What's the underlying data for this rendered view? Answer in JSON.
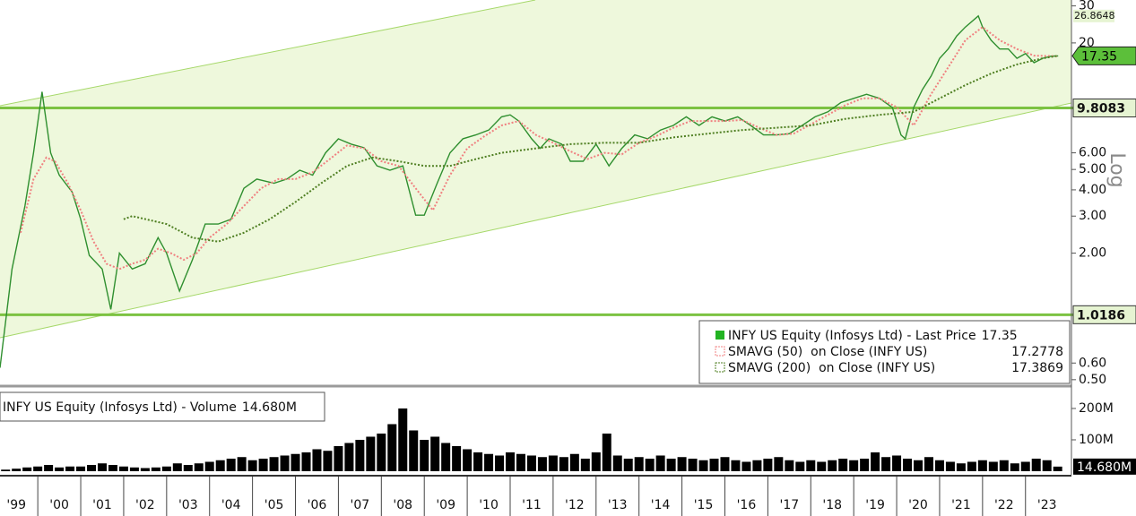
{
  "chart_data": [
    {
      "type": "line",
      "log_scale": true,
      "scale_label": "Log",
      "xlim": [
        1999.12,
        2024.07
      ],
      "ylim": [
        0.48,
        32
      ],
      "yticks": [
        30,
        20,
        {
          "value": 6,
          "label": "6.00"
        },
        {
          "value": 5,
          "label": "5.00"
        },
        {
          "value": 4,
          "label": "4.00"
        },
        {
          "value": 3,
          "label": "3.00"
        },
        {
          "value": 2,
          "label": "2.00"
        },
        {
          "value": 0.6,
          "label": "0.60"
        },
        {
          "value": 0.5,
          "label": "0.50"
        }
      ],
      "levels": [
        9.8083,
        1.0186
      ],
      "level_color": "#7cc242",
      "legend": "bottom-right",
      "series": [
        {
          "name": "INFY US Equity (Infosys Ltd) - Last Price",
          "color": "#2f8f2f",
          "x": [
            1999.12,
            1999.4,
            1999.7,
            1999.9,
            2000.1,
            2000.3,
            2000.5,
            2000.8,
            2001.0,
            2001.2,
            2001.5,
            2001.7,
            2001.9,
            2002.2,
            2002.5,
            2002.8,
            2003.0,
            2003.3,
            2003.6,
            2003.9,
            2004.2,
            2004.5,
            2004.8,
            2005.1,
            2005.5,
            2005.8,
            2006.1,
            2006.4,
            2006.7,
            2007.0,
            2007.3,
            2007.6,
            2007.9,
            2008.2,
            2008.5,
            2008.8,
            2009.0,
            2009.3,
            2009.6,
            2009.9,
            2010.2,
            2010.5,
            2010.8,
            2011.0,
            2011.2,
            2011.5,
            2011.7,
            2011.9,
            2012.2,
            2012.4,
            2012.7,
            2013.0,
            2013.3,
            2013.6,
            2013.9,
            2014.2,
            2014.5,
            2014.8,
            2015.1,
            2015.4,
            2015.7,
            2016.0,
            2016.3,
            2016.6,
            2016.9,
            2017.2,
            2017.5,
            2017.8,
            2018.1,
            2018.4,
            2018.7,
            2019.0,
            2019.3,
            2019.6,
            2019.9,
            2020.1,
            2020.2,
            2020.4,
            2020.6,
            2020.8,
            2021.0,
            2021.2,
            2021.4,
            2021.6,
            2021.9,
            2022.0,
            2022.2,
            2022.4,
            2022.6,
            2022.8,
            2023.0,
            2023.2,
            2023.4,
            2023.6,
            2023.76
          ],
          "values": [
            0.57,
            1.68,
            3.35,
            6.0,
            11.7,
            6.0,
            4.7,
            3.9,
            2.9,
            1.95,
            1.68,
            1.08,
            2.0,
            1.68,
            1.78,
            2.37,
            2.0,
            1.32,
            1.86,
            2.75,
            2.75,
            2.9,
            4.07,
            4.5,
            4.3,
            4.5,
            4.96,
            4.7,
            6.0,
            6.99,
            6.6,
            6.34,
            5.2,
            4.96,
            5.2,
            3.03,
            3.03,
            4.3,
            6.0,
            7.0,
            7.3,
            7.7,
            8.9,
            9.1,
            8.5,
            7.0,
            6.3,
            7.0,
            6.6,
            5.47,
            5.47,
            6.6,
            5.2,
            6.3,
            7.3,
            7.0,
            7.7,
            8.1,
            8.9,
            8.1,
            8.9,
            8.5,
            8.9,
            8.1,
            7.3,
            7.3,
            7.4,
            8.1,
            8.9,
            9.4,
            10.4,
            10.9,
            11.4,
            10.9,
            9.86,
            7.3,
            7.0,
            9.9,
            12.0,
            13.9,
            16.9,
            18.7,
            21.6,
            23.8,
            26.8648,
            23.8,
            20.6,
            18.7,
            18.7,
            16.9,
            17.8,
            16.1,
            16.9,
            17.3,
            17.35
          ]
        },
        {
          "name": "SMAVG (50)  on Close (INFY US)",
          "color": "#f08080",
          "x": [
            1999.6,
            1999.9,
            2000.2,
            2000.4,
            2000.7,
            2001.0,
            2001.3,
            2001.6,
            2001.9,
            2002.2,
            2002.5,
            2002.8,
            2003.1,
            2003.4,
            2003.7,
            2004.0,
            2004.4,
            2004.8,
            2005.2,
            2005.6,
            2006.0,
            2006.4,
            2006.8,
            2007.2,
            2007.6,
            2008.0,
            2008.4,
            2008.8,
            2009.2,
            2009.6,
            2010.0,
            2010.4,
            2010.8,
            2011.2,
            2011.6,
            2012.0,
            2012.4,
            2012.8,
            2013.2,
            2013.6,
            2014.0,
            2014.4,
            2014.8,
            2015.2,
            2015.6,
            2016.0,
            2016.4,
            2016.8,
            2017.2,
            2017.6,
            2018.0,
            2018.4,
            2018.8,
            2019.2,
            2019.6,
            2020.0,
            2020.4,
            2020.8,
            2021.2,
            2021.6,
            2022.0,
            2022.4,
            2022.8,
            2023.2,
            2023.76
          ],
          "values": [
            2.5,
            4.5,
            5.7,
            5.47,
            4.3,
            3.2,
            2.27,
            1.78,
            1.68,
            1.78,
            1.86,
            2.1,
            2.0,
            1.86,
            2.0,
            2.37,
            2.75,
            3.35,
            4.07,
            4.5,
            4.5,
            4.85,
            5.6,
            6.5,
            6.3,
            5.47,
            5.2,
            4.07,
            3.2,
            4.7,
            6.3,
            7.2,
            8.1,
            8.5,
            7.3,
            6.7,
            6.1,
            5.6,
            6.0,
            5.9,
            6.7,
            7.2,
            7.9,
            8.5,
            8.5,
            8.5,
            8.6,
            7.9,
            7.3,
            7.4,
            8.2,
            9.1,
            10.1,
            10.9,
            10.9,
            9.9,
            8.1,
            11.4,
            15.3,
            20.6,
            23.8,
            20.6,
            18.7,
            17.4,
            17.2778
          ]
        },
        {
          "name": "SMAVG (200)  on Close (INFY US)",
          "color": "#4f7f22",
          "x": [
            2002.0,
            2002.2,
            2003.0,
            2003.6,
            2004.2,
            2004.8,
            2005.4,
            2006.0,
            2006.6,
            2007.2,
            2007.8,
            2008.4,
            2009.0,
            2009.6,
            2010.2,
            2010.8,
            2011.6,
            2012.4,
            2013.2,
            2014.0,
            2014.8,
            2015.6,
            2016.4,
            2017.2,
            2018.0,
            2018.8,
            2019.6,
            2020.4,
            2021.0,
            2021.6,
            2022.2,
            2022.8,
            2023.4,
            2023.76
          ],
          "values": [
            2.9,
            3.0,
            2.75,
            2.37,
            2.27,
            2.5,
            2.9,
            3.5,
            4.3,
            5.2,
            5.7,
            5.47,
            5.2,
            5.2,
            5.6,
            6.0,
            6.3,
            6.6,
            6.7,
            6.7,
            7.1,
            7.4,
            7.7,
            7.9,
            8.1,
            8.7,
            9.1,
            9.4,
            10.9,
            12.6,
            14.3,
            15.8,
            16.9,
            17.3869
          ]
        }
      ]
    },
    {
      "type": "bar",
      "xlim": [
        1999.12,
        2024.07
      ],
      "ylim": [
        0,
        257
      ],
      "yticks": [
        {
          "value": 200,
          "label": "200M"
        },
        {
          "value": 100,
          "label": "100M"
        }
      ],
      "xticks": [
        {
          "value": 1999.5,
          "label": "'99"
        },
        {
          "value": 2000.5,
          "label": "'00"
        },
        {
          "value": 2001.5,
          "label": "'01"
        },
        {
          "value": 2002.5,
          "label": "'02"
        },
        {
          "value": 2003.5,
          "label": "'03"
        },
        {
          "value": 2004.5,
          "label": "'04"
        },
        {
          "value": 2005.5,
          "label": "'05"
        },
        {
          "value": 2006.5,
          "label": "'06"
        },
        {
          "value": 2007.5,
          "label": "'07"
        },
        {
          "value": 2008.5,
          "label": "'08"
        },
        {
          "value": 2009.5,
          "label": "'09"
        },
        {
          "value": 2010.5,
          "label": "'10"
        },
        {
          "value": 2011.5,
          "label": "'11"
        },
        {
          "value": 2012.5,
          "label": "'12"
        },
        {
          "value": 2013.5,
          "label": "'13"
        },
        {
          "value": 2014.5,
          "label": "'14"
        },
        {
          "value": 2015.5,
          "label": "'15"
        },
        {
          "value": 2016.5,
          "label": "'16"
        },
        {
          "value": 2017.5,
          "label": "'17"
        },
        {
          "value": 2018.5,
          "label": "'18"
        },
        {
          "value": 2019.5,
          "label": "'19"
        },
        {
          "value": 2020.5,
          "label": "'20"
        },
        {
          "value": 2021.5,
          "label": "'21"
        },
        {
          "value": 2022.5,
          "label": "'22"
        },
        {
          "value": 2023.5,
          "label": "'23"
        }
      ],
      "series": [
        {
          "name": "INFY US Equity (Infosys Ltd) - Volume",
          "color": "#000000",
          "last_value_label": "14.680M",
          "x": [
            1999.25,
            1999.5,
            1999.75,
            2000,
            2000.25,
            2000.5,
            2000.75,
            2001,
            2001.25,
            2001.5,
            2001.75,
            2002,
            2002.25,
            2002.5,
            2002.75,
            2003,
            2003.25,
            2003.5,
            2003.75,
            2004,
            2004.25,
            2004.5,
            2004.75,
            2005,
            2005.25,
            2005.5,
            2005.75,
            2006,
            2006.25,
            2006.5,
            2006.75,
            2007,
            2007.25,
            2007.5,
            2007.75,
            2008,
            2008.25,
            2008.5,
            2008.75,
            2009,
            2009.25,
            2009.5,
            2009.75,
            2010,
            2010.25,
            2010.5,
            2010.75,
            2011,
            2011.25,
            2011.5,
            2011.75,
            2012,
            2012.25,
            2012.5,
            2012.75,
            2013,
            2013.25,
            2013.5,
            2013.75,
            2014,
            2014.25,
            2014.5,
            2014.75,
            2015,
            2015.25,
            2015.5,
            2015.75,
            2016,
            2016.25,
            2016.5,
            2016.75,
            2017,
            2017.25,
            2017.5,
            2017.75,
            2018,
            2018.25,
            2018.5,
            2018.75,
            2019,
            2019.25,
            2019.5,
            2019.75,
            2020,
            2020.25,
            2020.5,
            2020.75,
            2021,
            2021.25,
            2021.5,
            2021.75,
            2022,
            2022.25,
            2022.5,
            2022.75,
            2023,
            2023.25,
            2023.5,
            2023.75
          ],
          "values": [
            5,
            8,
            12,
            15,
            20,
            12,
            15,
            15,
            20,
            25,
            20,
            15,
            12,
            10,
            12,
            15,
            25,
            20,
            25,
            30,
            35,
            40,
            45,
            35,
            40,
            45,
            50,
            55,
            60,
            70,
            65,
            80,
            90,
            100,
            110,
            120,
            150,
            200,
            130,
            100,
            110,
            90,
            80,
            70,
            60,
            55,
            50,
            60,
            55,
            50,
            45,
            50,
            45,
            55,
            40,
            60,
            120,
            50,
            40,
            45,
            40,
            50,
            40,
            45,
            40,
            35,
            40,
            45,
            35,
            30,
            35,
            40,
            45,
            35,
            30,
            35,
            30,
            35,
            40,
            35,
            40,
            60,
            45,
            50,
            40,
            35,
            45,
            35,
            30,
            25,
            30,
            35,
            30,
            35,
            25,
            30,
            40,
            35,
            14.68
          ]
        }
      ]
    }
  ]
}
